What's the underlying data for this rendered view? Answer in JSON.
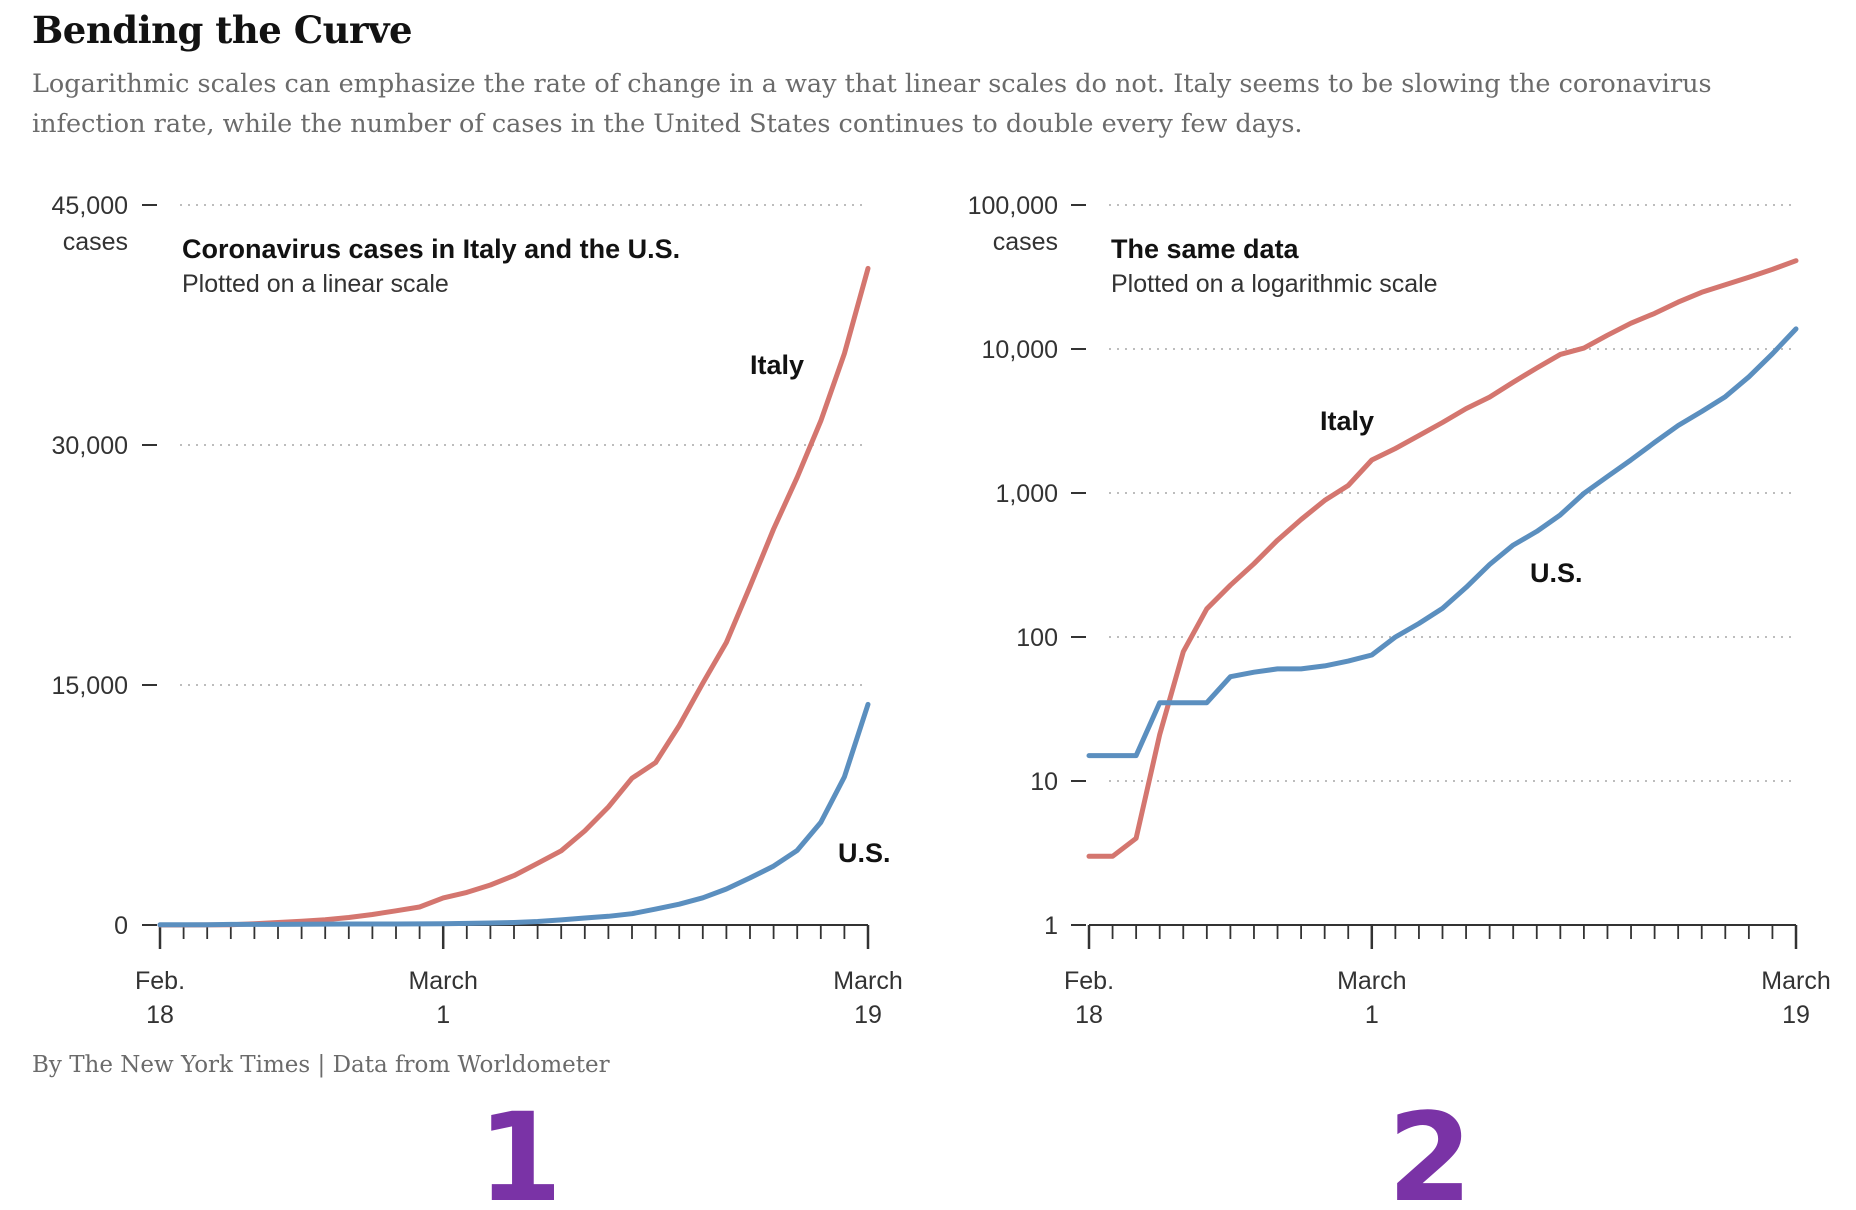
{
  "header": {
    "title": "Bending the Curve",
    "subtitle": "Logarithmic scales can emphasize the rate of change in a way that linear scales do not. Italy seems to be slowing the coronavirus infection rate, while the number of cases in the United States continues to double every few days."
  },
  "credit": "By The New York Times | Data from Worldometer",
  "markers": [
    "1",
    "2"
  ],
  "colors": {
    "italy": "#d4766f",
    "us": "#5b8fbf"
  },
  "x_dates": [
    "2020-02-18",
    "2020-02-19",
    "2020-02-20",
    "2020-02-21",
    "2020-02-22",
    "2020-02-23",
    "2020-02-24",
    "2020-02-25",
    "2020-02-26",
    "2020-02-27",
    "2020-02-28",
    "2020-02-29",
    "2020-03-01",
    "2020-03-02",
    "2020-03-03",
    "2020-03-04",
    "2020-03-05",
    "2020-03-06",
    "2020-03-07",
    "2020-03-08",
    "2020-03-09",
    "2020-03-10",
    "2020-03-11",
    "2020-03-12",
    "2020-03-13",
    "2020-03-14",
    "2020-03-15",
    "2020-03-16",
    "2020-03-17",
    "2020-03-18",
    "2020-03-19"
  ],
  "chart_data": [
    {
      "type": "line",
      "title": "Coronavirus cases in Italy and the U.S.",
      "subtitle": "Plotted on a linear scale",
      "ylabel": "cases",
      "yscale": "linear",
      "ylim": [
        0,
        45000
      ],
      "yticks": [
        0,
        15000,
        30000,
        45000
      ],
      "ytick_labels": [
        "0",
        "15,000",
        "30,000",
        "45,000"
      ],
      "xlim": [
        "2020-02-18",
        "2020-03-19"
      ],
      "xtick_labels": [
        [
          "Feb.",
          "18"
        ],
        [
          "March",
          "1"
        ],
        [
          "March",
          "19"
        ]
      ],
      "grid": true,
      "series": [
        {
          "name": "Italy",
          "values": [
            3,
            3,
            4,
            21,
            79,
            157,
            229,
            323,
            470,
            655,
            889,
            1128,
            1694,
            2036,
            2502,
            3089,
            3858,
            4636,
            5883,
            7375,
            9172,
            10149,
            12462,
            15113,
            17660,
            21157,
            24747,
            27980,
            31506,
            35713,
            41035
          ]
        },
        {
          "name": "U.S.",
          "values": [
            15,
            15,
            15,
            35,
            35,
            35,
            53,
            57,
            60,
            60,
            63,
            68,
            75,
            100,
            124,
            158,
            221,
            319,
            435,
            541,
            704,
            994,
            1301,
            1697,
            2247,
            2943,
            3680,
            4663,
            6411,
            9259,
            13789
          ]
        }
      ]
    },
    {
      "type": "line",
      "title": "The same data",
      "subtitle": "Plotted on a logarithmic scale",
      "ylabel": "cases",
      "yscale": "log",
      "ylim": [
        1,
        100000
      ],
      "yticks": [
        1,
        10,
        100,
        1000,
        10000,
        100000
      ],
      "ytick_labels": [
        "1",
        "10",
        "100",
        "1,000",
        "10,000",
        "100,000"
      ],
      "xlim": [
        "2020-02-18",
        "2020-03-19"
      ],
      "xtick_labels": [
        [
          "Feb.",
          "18"
        ],
        [
          "March",
          "1"
        ],
        [
          "March",
          "19"
        ]
      ],
      "grid": true,
      "series": [
        {
          "name": "Italy",
          "values": [
            3,
            3,
            4,
            21,
            79,
            157,
            229,
            323,
            470,
            655,
            889,
            1128,
            1694,
            2036,
            2502,
            3089,
            3858,
            4636,
            5883,
            7375,
            9172,
            10149,
            12462,
            15113,
            17660,
            21157,
            24747,
            27980,
            31506,
            35713,
            41035
          ]
        },
        {
          "name": "U.S.",
          "values": [
            15,
            15,
            15,
            35,
            35,
            35,
            53,
            57,
            60,
            60,
            63,
            68,
            75,
            100,
            124,
            158,
            221,
            319,
            435,
            541,
            704,
            994,
            1301,
            1697,
            2247,
            2943,
            3680,
            4663,
            6411,
            9259,
            13789
          ]
        }
      ]
    }
  ]
}
